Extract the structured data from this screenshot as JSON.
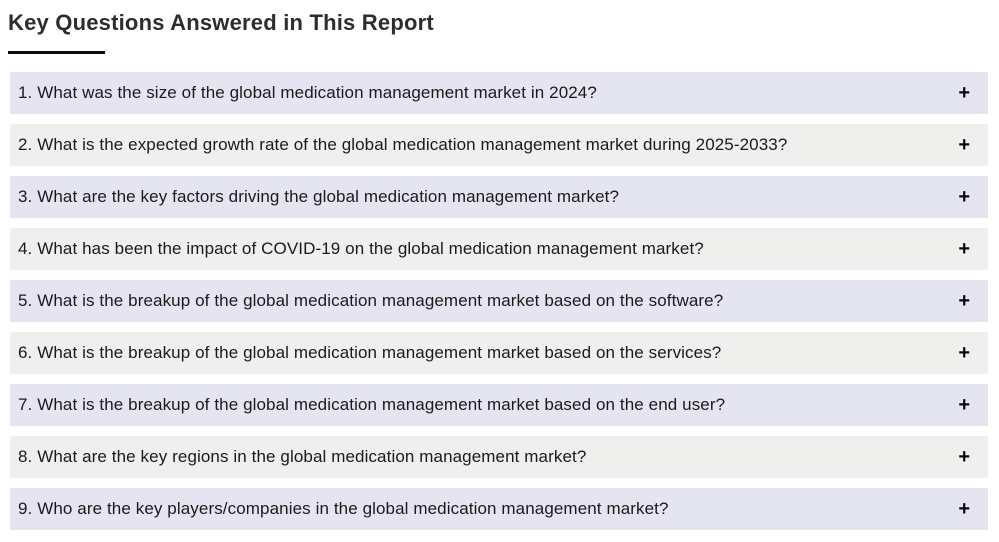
{
  "page": {
    "title": "Key Questions Answered in This Report"
  },
  "faq": {
    "expand_icon": "+",
    "items": [
      {
        "question": "1. What was the size of the global medication management market in 2024?"
      },
      {
        "question": "2. What is the expected growth rate of the global medication management market during 2025-2033?"
      },
      {
        "question": "3. What are the key factors driving the global medication management market?"
      },
      {
        "question": "4. What has been the impact of COVID-19 on the global medication management market?"
      },
      {
        "question": "5. What is the breakup of the global medication management market based on the software?"
      },
      {
        "question": "6. What is the breakup of the global medication management market based on the services?"
      },
      {
        "question": "7. What is the breakup of the global medication management market based on the end user?"
      },
      {
        "question": "8. What are the key regions in the global medication management market?"
      },
      {
        "question": "9. Who are the key players/companies in the global medication management market?"
      }
    ]
  },
  "colors": {
    "row_odd_bg": "#e5e5f1",
    "row_even_bg": "#efefee",
    "question_text": "#1a1a1a",
    "title_text": "#2d2d2d",
    "title_underline": "#0a0a0a",
    "icon": "#0a0a0a"
  }
}
